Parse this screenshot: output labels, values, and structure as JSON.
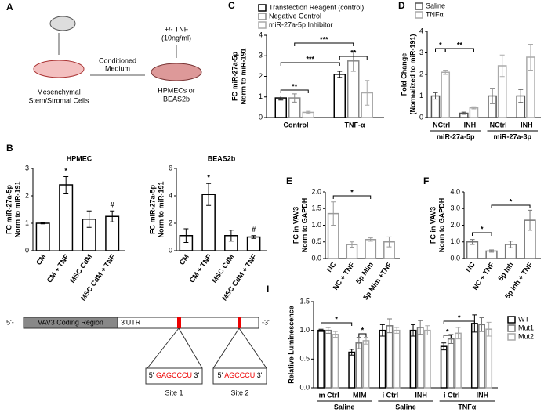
{
  "panel_letters": [
    "A",
    "B",
    "C",
    "D",
    "E",
    "F",
    "I"
  ],
  "diagram": {
    "panel_a": [
      "+/- TNF",
      "(10ng/ml)",
      "Conditioned",
      "Medium",
      "Mesenchymal",
      "Stem/Stromal  Cells",
      "HPMECs or",
      "BEAS2b"
    ],
    "schematic": {
      "five_prime": "5'-",
      "coding": "VAV3 Coding Region",
      "utr": "3'UTR",
      "three_prime": "-3'",
      "site1": {
        "left": "5'",
        "seq": "GAGCCCU",
        "right": "3'",
        "name": "Site 1"
      },
      "site2": {
        "left": "5'",
        "seq": "AGCCCU",
        "right": "3'",
        "name": "Site 2"
      }
    }
  },
  "chart_data": [
    {
      "type": "bar",
      "title": "HPMEC",
      "y_label": [
        "FC miR-27a-5p",
        "Norm to miR-191"
      ],
      "categories": [
        "CM",
        "CM + TNF",
        "MSC CdM",
        "MSC CdM + TNF"
      ],
      "values": [
        1,
        2.4,
        1.15,
        1.25
      ],
      "errors": [
        0.02,
        0.3,
        0.3,
        0.2
      ],
      "color": "#000000",
      "ylim": [
        0,
        3
      ],
      "yticks": [
        0,
        1,
        2,
        3
      ],
      "annotations": [
        "*",
        "#"
      ]
    },
    {
      "type": "bar",
      "title": "BEAS2b",
      "y_label": [
        "FC miR-27a-5p",
        "Norm to miR-191"
      ],
      "categories": [
        "CM",
        "CM + TNF",
        "MSC CdM",
        "MSC CdM + TNF"
      ],
      "values": [
        1.1,
        4.1,
        1.1,
        1.0
      ],
      "errors": [
        0.5,
        0.8,
        0.4,
        0.1
      ],
      "color": "#000000",
      "ylim": [
        0,
        6
      ],
      "yticks": [
        0,
        2,
        4,
        6
      ],
      "annotations": [
        "*",
        "#"
      ]
    },
    {
      "type": "bar",
      "y_label": [
        "FC miR-27a-5p",
        "Norm to miR-191"
      ],
      "categories": [
        "Control",
        "TNF-α"
      ],
      "series": [
        {
          "name": "Transfection Reagent (control)",
          "color": "#000000",
          "values": [
            0.95,
            2.1
          ],
          "errors": [
            0.1,
            0.15
          ]
        },
        {
          "name": "Negative Control",
          "color": "#888888",
          "values": [
            0.95,
            2.75
          ],
          "errors": [
            0.2,
            0.5
          ]
        },
        {
          "name": "miR-27a-5p Inhibitor",
          "color": "#aaaaaa",
          "values": [
            0.25,
            1.2
          ],
          "errors": [
            0.05,
            0.6
          ]
        }
      ],
      "ylim": [
        0,
        4
      ],
      "yticks": [
        0,
        1,
        2,
        3,
        4
      ],
      "annotations": [
        "**",
        "***",
        "***",
        "**"
      ]
    },
    {
      "type": "bar",
      "y_label": [
        "Fold Change",
        "(Normalized to miR-191)"
      ],
      "categories": [
        "NCtrl",
        "INH",
        "NCtrl",
        "INH"
      ],
      "groups": [
        "miR-27a-5p",
        "miR-27a-3p"
      ],
      "series": [
        {
          "name": "Saline",
          "color": "#555555",
          "values": [
            1.0,
            0.2,
            1.0,
            1.0
          ],
          "errors": [
            0.15,
            0.05,
            0.35,
            0.3
          ]
        },
        {
          "name": "TNFα",
          "color": "#aaaaaa",
          "values": [
            2.1,
            0.45,
            2.4,
            2.8
          ],
          "errors": [
            0.1,
            0.05,
            0.5,
            0.6
          ]
        }
      ],
      "ylim": [
        0,
        4
      ],
      "yticks": [
        0,
        1,
        2,
        3,
        4
      ],
      "annotations": [
        "*",
        "**"
      ]
    },
    {
      "type": "bar",
      "y_label": [
        "FC in VAV3",
        "Norm to GAPDH"
      ],
      "categories": [
        "NC",
        "NC + TNF",
        "5p Mim",
        "5p Mim +TNF"
      ],
      "values": [
        1.35,
        0.42,
        0.57,
        0.5
      ],
      "errors": [
        0.35,
        0.08,
        0.05,
        0.15
      ],
      "color": "#999999",
      "ylim": [
        0,
        2
      ],
      "yticks": [
        {
          "value": 0,
          "label": "0.0"
        },
        {
          "value": 0.5,
          "label": "0.5"
        },
        {
          "value": 1,
          "label": "1.0"
        },
        {
          "value": 1.5,
          "label": "1.5"
        },
        {
          "value": 2,
          "label": "2.0"
        }
      ],
      "annotations": [
        "*"
      ]
    },
    {
      "type": "bar",
      "y_label": [
        "FC in VAV3",
        "Norm to GAPDH"
      ],
      "categories": [
        "NC",
        "NC + TNF",
        "5p Inh",
        "5p Inh + TNF"
      ],
      "values": [
        1.0,
        0.45,
        0.85,
        2.3
      ],
      "errors": [
        0.15,
        0.07,
        0.2,
        0.6
      ],
      "color": "#777777",
      "ylim": [
        0,
        4
      ],
      "yticks": [
        {
          "value": 0,
          "label": "0.0"
        },
        {
          "value": 1,
          "label": "1.0"
        },
        {
          "value": 2,
          "label": "2.0"
        },
        {
          "value": 3,
          "label": "3.0"
        },
        {
          "value": 4,
          "label": "4.0"
        }
      ],
      "annotations": [
        "*",
        "*"
      ]
    },
    {
      "type": "bar",
      "y_label": [
        "Relative Luminescence"
      ],
      "categories": [
        "m Ctrl",
        "MIM",
        "i Ctrl",
        "INH",
        "i Ctrl",
        "INH"
      ],
      "groups": [
        "Saline",
        "Saline",
        "TNFα"
      ],
      "series": [
        {
          "name": "WT",
          "color": "#000000",
          "values": [
            1.0,
            0.62,
            1.0,
            1.0,
            0.72,
            1.12
          ],
          "errors": [
            0.02,
            0.05,
            0.1,
            0.1,
            0.06,
            0.15
          ]
        },
        {
          "name": "Mut1",
          "color": "#777777",
          "values": [
            1.0,
            0.78,
            1.08,
            1.05,
            0.85,
            1.1
          ],
          "errors": [
            0.05,
            0.1,
            0.12,
            0.12,
            0.08,
            0.12
          ]
        },
        {
          "name": "Mut2",
          "color": "#aaaaaa",
          "values": [
            0.93,
            0.82,
            1.0,
            1.0,
            0.95,
            1.02
          ],
          "errors": [
            0.05,
            0.06,
            0.05,
            0.08,
            0.1,
            0.12
          ]
        }
      ],
      "ylim": [
        0,
        1.5
      ],
      "yticks": [
        {
          "value": 0,
          "label": "0.0"
        },
        {
          "value": 0.5,
          "label": "0.5"
        },
        {
          "value": 1,
          "label": "1.0"
        },
        {
          "value": 1.5,
          "label": "1.5"
        }
      ],
      "annotations": [
        "*",
        "*",
        "*",
        "*"
      ]
    }
  ]
}
